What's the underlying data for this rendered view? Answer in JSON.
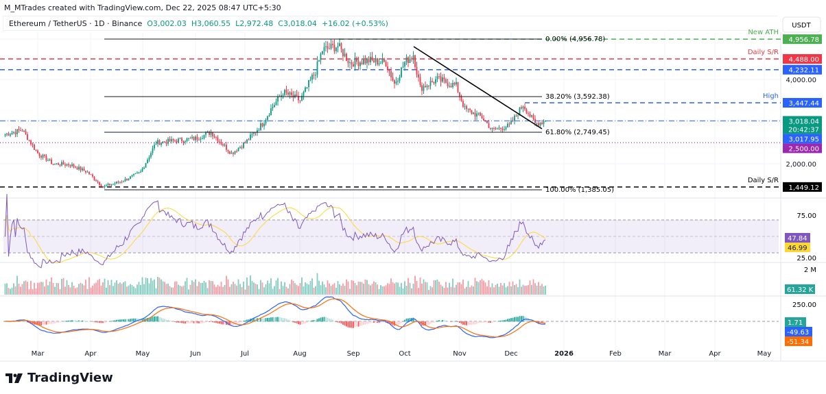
{
  "header": {
    "created": "M_MTrades created with TradingView.com, Dec 22, 2025 08:47 UTC+5:30"
  },
  "legend": {
    "symbol": "Ethereum / TetherUS · 1D · Binance",
    "open": "O3,002.03",
    "high": "H3,060.55",
    "low": "L2,972.48",
    "close": "C3,018.04",
    "change": "+16.02 (+0.53%)"
  },
  "price_axis": {
    "currency": "USDT",
    "ticks": [
      "4,000.00",
      "2,000.00"
    ]
  },
  "annotations": {
    "fib_0": "0.00% (4,956.78)",
    "fib_382": "38.20% (3,592.38)",
    "fib_618": "61.80% (2,749.45)",
    "fib_100": "100.00% (1,385.05)",
    "new_ath": "New ATH",
    "daily_sr_top": "Daily S/R",
    "high": "High",
    "daily_sr_bottom": "Daily S/R"
  },
  "price_labels": [
    {
      "text": "4,956.78",
      "value": 4956.78,
      "color": "#4caf50"
    },
    {
      "text": "4,488.00",
      "value": 4488,
      "color": "#f23645"
    },
    {
      "text": "4,232.11",
      "value": 4232.11,
      "color": "#2962ff"
    },
    {
      "text": "3,447.44",
      "value": 3447.44,
      "color": "#2962ff"
    },
    {
      "text": "3,018.04",
      "value": 3018.04,
      "color": "#089981",
      "countdown": "20:42:37"
    },
    {
      "text": "3,017.95",
      "value": 3017.95,
      "color": "#2962ff"
    },
    {
      "text": "2,500.00",
      "value": 2500,
      "color": "#9c27b0"
    },
    {
      "text": "1,449.12",
      "value": 1449.12,
      "color": "#000000"
    }
  ],
  "rsi": {
    "ticks": [
      "75.00",
      "25.00"
    ],
    "value": "47.84",
    "ma": "46.99",
    "colors": {
      "rsi": "#7e57c2",
      "ma": "#fdd835"
    }
  },
  "volume": {
    "tick": "2 M",
    "value": "61.32 K"
  },
  "macd": {
    "tick": "250.00",
    "hist": "1.71",
    "macd": "-49.63",
    "signal": "-51.34",
    "colors": {
      "macd": "#2962ff",
      "signal": "#ff6d00"
    }
  },
  "time_axis": [
    "Mar",
    "Apr",
    "May",
    "Jun",
    "Jul",
    "Aug",
    "Sep",
    "Oct",
    "Nov",
    "Dec",
    "2026",
    "Feb",
    "Mar",
    "Apr",
    "May"
  ],
  "brand": "TradingView",
  "chart_data": {
    "type": "candlestick",
    "symbol": "ETHUSDT",
    "interval": "1D",
    "approx_closes": [
      [
        "2025-02-10",
        2700
      ],
      [
        "2025-02-20",
        2800
      ],
      [
        "2025-03-01",
        2250
      ],
      [
        "2025-03-10",
        2000
      ],
      [
        "2025-03-20",
        1980
      ],
      [
        "2025-03-30",
        1800
      ],
      [
        "2025-04-08",
        1450
      ],
      [
        "2025-04-20",
        1600
      ],
      [
        "2025-04-30",
        1800
      ],
      [
        "2025-05-09",
        2500
      ],
      [
        "2025-05-20",
        2550
      ],
      [
        "2025-06-01",
        2600
      ],
      [
        "2025-06-10",
        2750
      ],
      [
        "2025-06-22",
        2250
      ],
      [
        "2025-06-30",
        2500
      ],
      [
        "2025-07-10",
        2950
      ],
      [
        "2025-07-15",
        3300
      ],
      [
        "2025-07-22",
        3700
      ],
      [
        "2025-08-01",
        3500
      ],
      [
        "2025-08-10",
        4200
      ],
      [
        "2025-08-14",
        4700
      ],
      [
        "2025-08-23",
        4800
      ],
      [
        "2025-08-30",
        4400
      ],
      [
        "2025-09-10",
        4450
      ],
      [
        "2025-09-20",
        4400
      ],
      [
        "2025-09-25",
        3900
      ],
      [
        "2025-10-01",
        4400
      ],
      [
        "2025-10-06",
        4600
      ],
      [
        "2025-10-10",
        3800
      ],
      [
        "2025-10-20",
        4000
      ],
      [
        "2025-10-31",
        3850
      ],
      [
        "2025-11-05",
        3300
      ],
      [
        "2025-11-15",
        3100
      ],
      [
        "2025-11-21",
        2800
      ],
      [
        "2025-12-01",
        2900
      ],
      [
        "2025-12-09",
        3400
      ],
      [
        "2025-12-16",
        2950
      ],
      [
        "2025-12-22",
        3018
      ]
    ],
    "trendline": [
      [
        "2025-10-06",
        4700
      ],
      [
        "2025-12-22",
        2750
      ]
    ],
    "y_range": [
      1300,
      5100
    ],
    "x_range": [
      "2025-02-10",
      "2026-05-31"
    ]
  }
}
